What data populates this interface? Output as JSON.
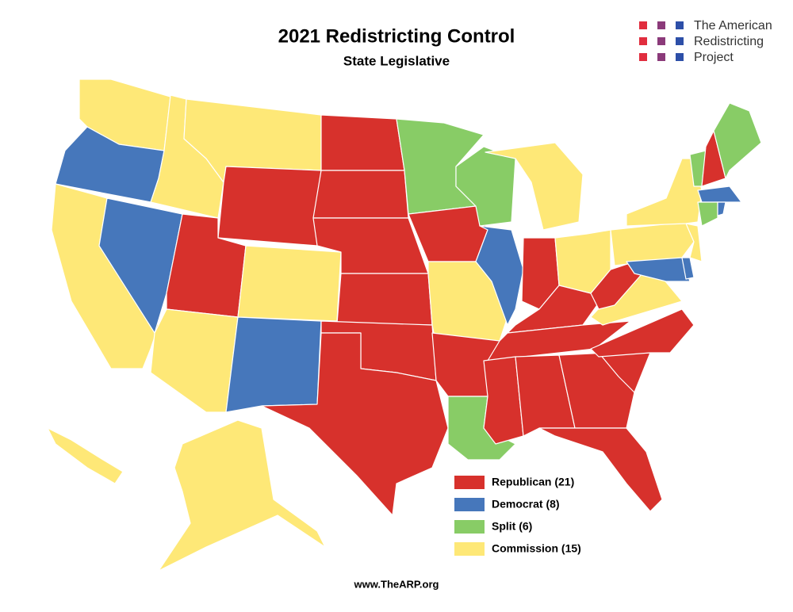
{
  "header": {
    "title": "2021 Redistricting Control",
    "subtitle": "State Legislative"
  },
  "logo": {
    "lines": [
      "The American",
      "Redistricting",
      "Project"
    ]
  },
  "legend": [
    {
      "label": "Republican (21)",
      "color": "#d7312c"
    },
    {
      "label": "Democrat (8)",
      "color": "#4677bb"
    },
    {
      "label": "Split (6)",
      "color": "#88cc66"
    },
    {
      "label": "Commission (15)",
      "color": "#fee877"
    }
  ],
  "footer": {
    "url": "www.TheARP.org"
  }
}
